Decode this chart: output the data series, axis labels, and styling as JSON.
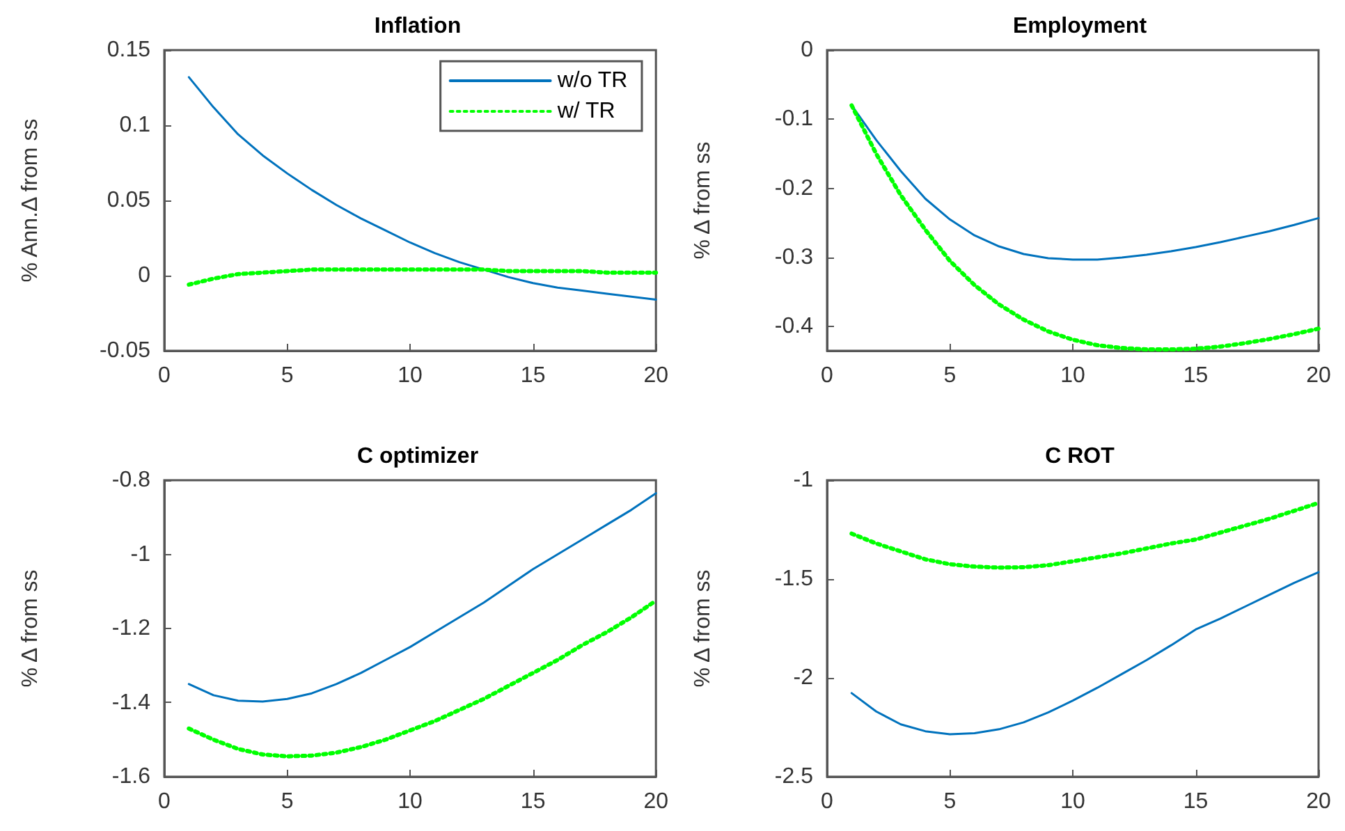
{
  "chart_data": [
    {
      "type": "line",
      "title": "Inflation",
      "ylabel": "% Ann.Δ from ss",
      "x": [
        1,
        2,
        3,
        4,
        5,
        6,
        7,
        8,
        9,
        10,
        11,
        12,
        13,
        14,
        15,
        16,
        17,
        18,
        19,
        20
      ],
      "xlim": [
        0,
        20
      ],
      "xticks": [
        0,
        5,
        10,
        15,
        20
      ],
      "ylim": [
        -0.05,
        0.15
      ],
      "yticks": [
        -0.05,
        0,
        0.05,
        0.1,
        0.15
      ],
      "grid": false,
      "legend": "top right",
      "marker": "none",
      "series": [
        {
          "name": "w/o TR",
          "color": "#0072bd",
          "line_style": "solid",
          "values": [
            0.132,
            0.112,
            0.094,
            0.08,
            0.068,
            0.057,
            0.047,
            0.038,
            0.03,
            0.022,
            0.015,
            0.009,
            0.004,
            -0.001,
            -0.005,
            -0.008,
            -0.01,
            -0.012,
            -0.014,
            -0.016
          ]
        },
        {
          "name": "w/ TR",
          "color": "#00ff00",
          "line_style": "dotted",
          "values": [
            -0.006,
            -0.002,
            0.001,
            0.002,
            0.003,
            0.004,
            0.004,
            0.004,
            0.004,
            0.004,
            0.004,
            0.004,
            0.004,
            0.003,
            0.003,
            0.003,
            0.003,
            0.002,
            0.002,
            0.002
          ]
        }
      ]
    },
    {
      "type": "line",
      "title": "Employment",
      "ylabel": "% Δ from ss",
      "x": [
        1,
        2,
        3,
        4,
        5,
        6,
        7,
        8,
        9,
        10,
        11,
        12,
        13,
        14,
        15,
        16,
        17,
        18,
        19,
        20
      ],
      "xlim": [
        0,
        20
      ],
      "xticks": [
        0,
        5,
        10,
        15,
        20
      ],
      "ylim": [
        -0.435,
        0
      ],
      "yticks": [
        -0.4,
        -0.3,
        -0.2,
        -0.1,
        0
      ],
      "grid": false,
      "marker": "none",
      "series": [
        {
          "color": "#0072bd",
          "line_style": "solid",
          "values": [
            -0.08,
            -0.13,
            -0.175,
            -0.215,
            -0.245,
            -0.268,
            -0.284,
            -0.295,
            -0.301,
            -0.303,
            -0.303,
            -0.3,
            -0.296,
            -0.291,
            -0.285,
            -0.278,
            -0.27,
            -0.262,
            -0.253,
            -0.243
          ]
        },
        {
          "color": "#00ff00",
          "line_style": "dotted",
          "values": [
            -0.08,
            -0.15,
            -0.21,
            -0.26,
            -0.305,
            -0.34,
            -0.368,
            -0.39,
            -0.407,
            -0.419,
            -0.427,
            -0.431,
            -0.433,
            -0.433,
            -0.432,
            -0.429,
            -0.424,
            -0.418,
            -0.411,
            -0.403
          ]
        }
      ]
    },
    {
      "type": "line",
      "title": "C optimizer",
      "ylabel": "% Δ from ss",
      "x": [
        1,
        2,
        3,
        4,
        5,
        6,
        7,
        8,
        9,
        10,
        11,
        12,
        13,
        14,
        15,
        16,
        17,
        18,
        19,
        20
      ],
      "xlim": [
        0,
        20
      ],
      "xticks": [
        0,
        5,
        10,
        15,
        20
      ],
      "ylim": [
        -1.6,
        -0.8
      ],
      "yticks": [
        -1.6,
        -1.4,
        -1.2,
        -1,
        -0.8
      ],
      "grid": false,
      "marker": "none",
      "series": [
        {
          "color": "#0072bd",
          "line_style": "solid",
          "values": [
            -1.35,
            -1.38,
            -1.395,
            -1.397,
            -1.39,
            -1.375,
            -1.35,
            -1.32,
            -1.285,
            -1.25,
            -1.21,
            -1.17,
            -1.13,
            -1.085,
            -1.04,
            -1.0,
            -0.96,
            -0.92,
            -0.88,
            -0.835
          ]
        },
        {
          "color": "#00ff00",
          "line_style": "dotted",
          "values": [
            -1.47,
            -1.5,
            -1.525,
            -1.54,
            -1.545,
            -1.543,
            -1.535,
            -1.52,
            -1.5,
            -1.475,
            -1.45,
            -1.42,
            -1.39,
            -1.355,
            -1.32,
            -1.285,
            -1.245,
            -1.21,
            -1.17,
            -1.125
          ]
        }
      ]
    },
    {
      "type": "line",
      "title": "C ROT",
      "ylabel": "% Δ from ss",
      "x": [
        1,
        2,
        3,
        4,
        5,
        6,
        7,
        8,
        9,
        10,
        11,
        12,
        13,
        14,
        15,
        16,
        17,
        18,
        19,
        20
      ],
      "xlim": [
        0,
        20
      ],
      "xticks": [
        0,
        5,
        10,
        15,
        20
      ],
      "ylim": [
        -2.5,
        -1
      ],
      "yticks": [
        -2.5,
        -2,
        -1.5,
        -1
      ],
      "grid": false,
      "marker": "none",
      "series": [
        {
          "color": "#0072bd",
          "line_style": "solid",
          "values": [
            -2.077,
            -2.17,
            -2.235,
            -2.27,
            -2.285,
            -2.28,
            -2.26,
            -2.225,
            -2.175,
            -2.115,
            -2.05,
            -1.98,
            -1.91,
            -1.835,
            -1.755,
            -1.7,
            -1.64,
            -1.58,
            -1.52,
            -1.465
          ]
        },
        {
          "color": "#00ff00",
          "line_style": "dotted",
          "values": [
            -1.27,
            -1.32,
            -1.36,
            -1.4,
            -1.425,
            -1.437,
            -1.442,
            -1.44,
            -1.43,
            -1.41,
            -1.39,
            -1.37,
            -1.345,
            -1.32,
            -1.3,
            -1.265,
            -1.23,
            -1.195,
            -1.155,
            -1.115
          ]
        }
      ]
    }
  ]
}
